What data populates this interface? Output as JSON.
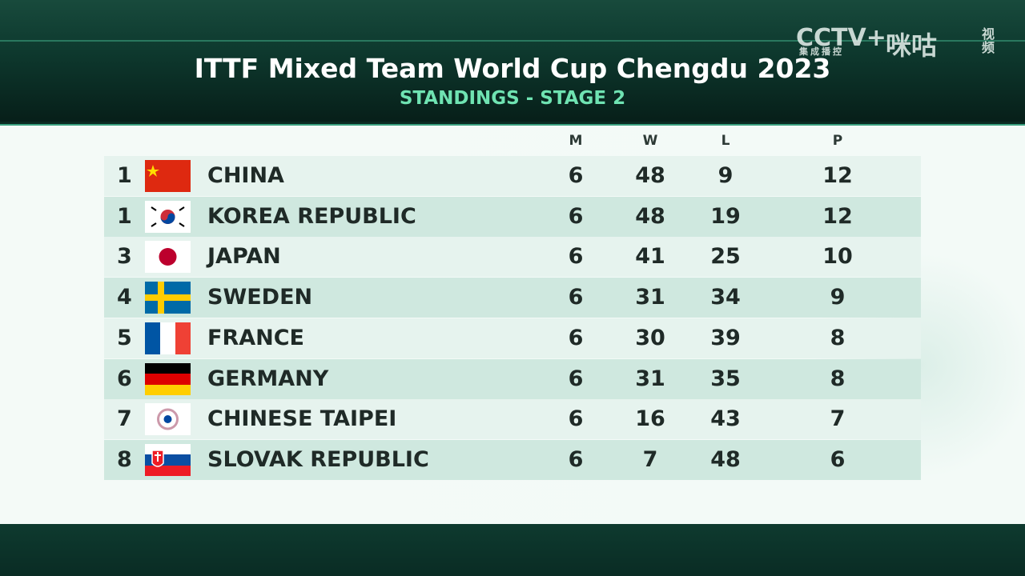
{
  "header": {
    "title": "ITTF Mixed Team World Cup Chengdu 2023",
    "subtitle": "STANDINGS - STAGE 2"
  },
  "logo": {
    "cctv": "CCTV+",
    "cctv_sub": "集成播控",
    "migu": "咪咕",
    "migu_sub": "视频"
  },
  "table": {
    "columns": [
      "M",
      "W",
      "L",
      "P"
    ],
    "rows": [
      [
        "1",
        "CHINA",
        "6",
        "48",
        "9",
        "12"
      ],
      [
        "1",
        "KOREA REPUBLIC",
        "6",
        "48",
        "19",
        "12"
      ],
      [
        "3",
        "JAPAN",
        "6",
        "41",
        "25",
        "10"
      ],
      [
        "4",
        "SWEDEN",
        "6",
        "31",
        "34",
        "9"
      ],
      [
        "5",
        "FRANCE",
        "6",
        "30",
        "39",
        "8"
      ],
      [
        "6",
        "GERMANY",
        "6",
        "31",
        "35",
        "8"
      ],
      [
        "7",
        "CHINESE TAIPEI",
        "6",
        "16",
        "43",
        "7"
      ],
      [
        "8",
        "SLOVAK REPUBLIC",
        "6",
        "7",
        "48",
        "6"
      ]
    ]
  }
}
